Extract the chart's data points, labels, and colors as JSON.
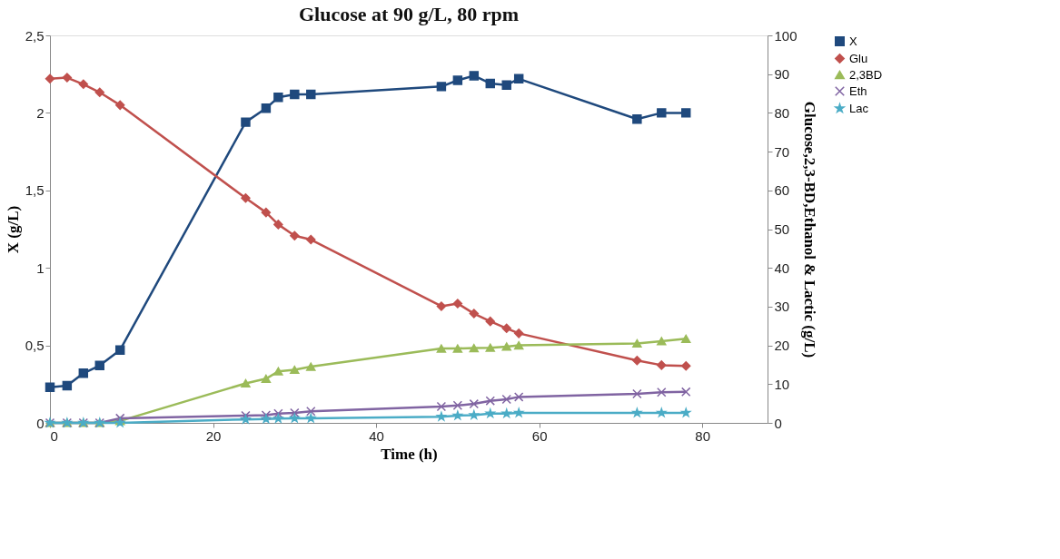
{
  "chart_data": {
    "type": "line",
    "title": "Glucose at 90 g/L, 80 rpm",
    "xlabel": "Time (h)",
    "ylabel": "X (g/L)",
    "y2label": "Glucose,2,3-BD,Ethanol & Lactic (g/L)",
    "x": [
      0,
      2.1,
      4.1,
      6.1,
      8.6,
      24,
      26.5,
      28,
      30,
      32,
      48,
      50,
      52,
      54,
      56,
      57.5,
      72,
      75,
      78
    ],
    "xlim": [
      0,
      88
    ],
    "xticks": [
      0,
      20,
      40,
      60,
      80
    ],
    "ylim": [
      0,
      2.5
    ],
    "yticks": [
      {
        "value": 0,
        "label": "0"
      },
      {
        "value": 0.5,
        "label": "0,5"
      },
      {
        "value": 1,
        "label": "1"
      },
      {
        "value": 1.5,
        "label": "1,5"
      },
      {
        "value": 2,
        "label": "2"
      },
      {
        "value": 2.5,
        "label": "2,5"
      }
    ],
    "y2lim": [
      0,
      100
    ],
    "y2ticks": [
      0,
      10,
      20,
      30,
      40,
      50,
      60,
      70,
      80,
      90,
      100
    ],
    "grid": false,
    "legend": "top right",
    "series": [
      {
        "name": "X",
        "color": "#1f497d",
        "marker": "square",
        "values": [
          0.23,
          0.24,
          0.32,
          0.37,
          0.47,
          1.94,
          2.03,
          2.1,
          2.12,
          2.12,
          2.17,
          2.21,
          2.24,
          2.19,
          2.18,
          2.22,
          1.96,
          2.0,
          2.0
        ]
      },
      {
        "name": "Glu",
        "color": "#c0504d",
        "marker": "diamond",
        "axis": "y2",
        "values": [
          88.8,
          89.1,
          87.4,
          85.3,
          82.0,
          58.0,
          54.3,
          51.2,
          48.3,
          47.3,
          30.1,
          30.8,
          28.2,
          26.2,
          24.4,
          23.1,
          16.1,
          14.9,
          14.7
        ]
      },
      {
        "name": "2,3BD",
        "color": "#9bbb59",
        "marker": "triangle",
        "axis": "y2",
        "values": [
          0,
          0,
          0,
          0,
          0.5,
          10.2,
          11.4,
          13.3,
          13.7,
          14.5,
          19.2,
          19.2,
          19.3,
          19.4,
          19.7,
          20.0,
          20.5,
          21.1,
          21.7
        ]
      },
      {
        "name": "Eth",
        "color": "#8064a2",
        "marker": "cross",
        "axis": "y2",
        "values": [
          0,
          0,
          0,
          0,
          1.2,
          1.9,
          2.0,
          2.4,
          2.6,
          3.0,
          4.2,
          4.5,
          4.9,
          5.7,
          6.1,
          6.7,
          7.5,
          7.9,
          8.0
        ]
      },
      {
        "name": "Lac",
        "color": "#4bacc6",
        "marker": "star",
        "axis": "y2",
        "values": [
          0,
          0,
          0,
          0,
          0,
          0.9,
          1.0,
          1.1,
          1.2,
          1.2,
          1.6,
          1.9,
          2.0,
          2.4,
          2.4,
          2.6,
          2.6,
          2.6,
          2.6
        ]
      }
    ]
  }
}
